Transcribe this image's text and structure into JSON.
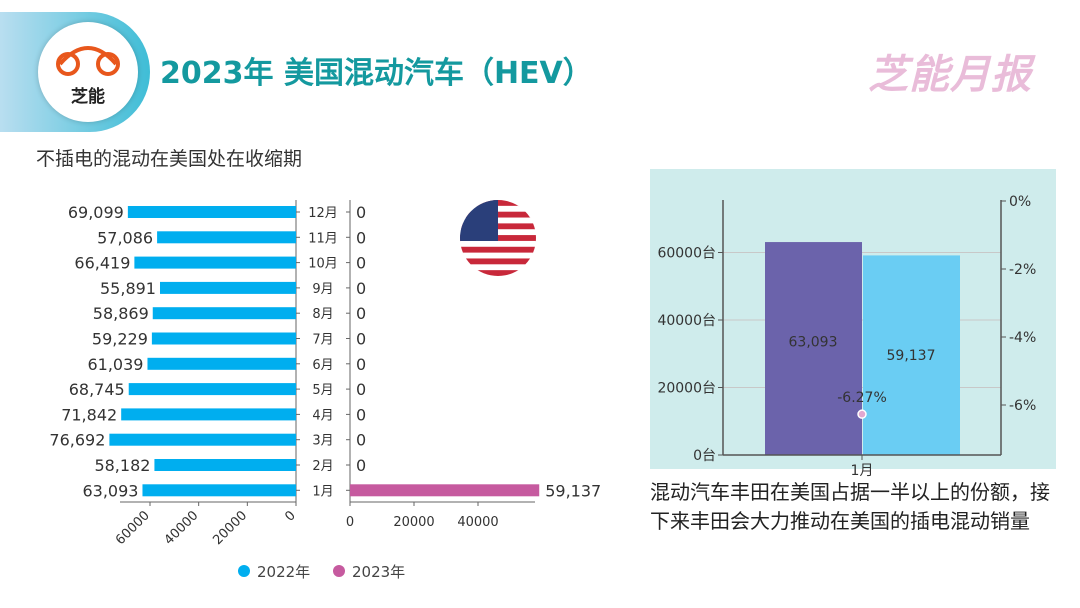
{
  "header": {
    "title": "2023年 美国混动汽车（HEV）",
    "logo_text": "芝能",
    "brand": "芝能月报"
  },
  "subtitle": "不插电的混动在美国处在收缩期",
  "note": "混动汽车丰田在美国占据一半以上的份额，接下来丰田会大力推动在美国的插电混动销量",
  "chart_data": [
    {
      "type": "bar",
      "orientation": "horizontal-butterfly",
      "categories": [
        "12月",
        "11月",
        "10月",
        "9月",
        "8月",
        "7月",
        "6月",
        "5月",
        "4月",
        "3月",
        "2月",
        "1月"
      ],
      "series": [
        {
          "name": "2022年",
          "color": "#00aeef",
          "values": [
            69099,
            57086,
            66419,
            55891,
            58869,
            59229,
            61039,
            68745,
            71842,
            76692,
            58182,
            63093
          ],
          "labels": [
            "69,099",
            "57,086",
            "66,419",
            "55,891",
            "58,869",
            "59,229",
            "61,039",
            "68,745",
            "71,842",
            "76,692",
            "58,182",
            "63,093"
          ]
        },
        {
          "name": "2023年",
          "color": "#c65a9f",
          "values": [
            0,
            0,
            0,
            0,
            0,
            0,
            0,
            0,
            0,
            0,
            0,
            59137
          ],
          "labels": [
            "0",
            "0",
            "0",
            "0",
            "0",
            "0",
            "0",
            "0",
            "0",
            "0",
            "0",
            "59,137"
          ]
        }
      ],
      "left_ticks": [
        "60000",
        "40000",
        "20000",
        "0"
      ],
      "right_ticks": [
        "0",
        "20000",
        "40000"
      ],
      "legend": "bottom"
    },
    {
      "type": "bar+line",
      "categories": [
        "1月"
      ],
      "series": [
        {
          "color": "#6b63ab",
          "values": [
            63093
          ],
          "label": "63,093"
        },
        {
          "color": "#6acdf3",
          "values": [
            59137
          ],
          "label": "59,137"
        },
        {
          "type": "point",
          "axis": "right",
          "color": "#e0a8d0",
          "values": [
            -6.27
          ],
          "label": "-6.27%"
        }
      ],
      "y_ticks": [
        "0台",
        "20000台",
        "40000台",
        "60000台"
      ],
      "y2_ticks": [
        "0%",
        "-2%",
        "-4%",
        "-6%"
      ],
      "ylim": [
        0,
        75000
      ],
      "y2lim": [
        -7.5,
        0
      ],
      "background": "#cfecec",
      "grid": true
    }
  ]
}
